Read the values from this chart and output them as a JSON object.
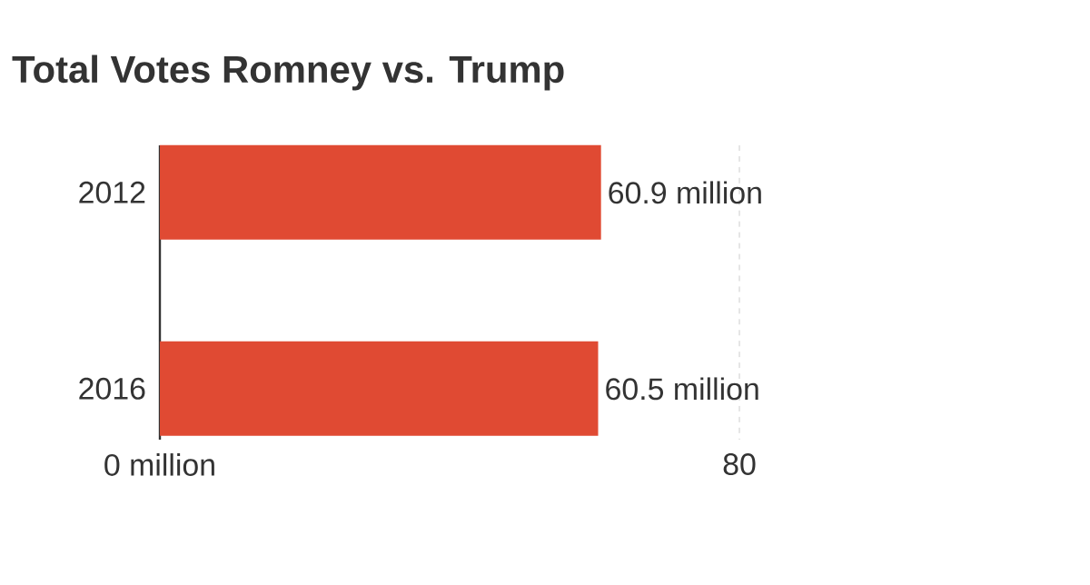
{
  "chart_data": {
    "type": "bar",
    "orientation": "horizontal",
    "title": "Total Votes Romney vs. Trump",
    "categories": [
      "2012",
      "2016"
    ],
    "values": [
      60.9,
      60.5
    ],
    "color": "#e04a33",
    "value_labels": [
      "60.9 million",
      "60.5 million"
    ],
    "xlim": [
      0,
      80
    ],
    "xticks": [
      {
        "value": 0,
        "label": "0 million"
      },
      80
    ],
    "grid": "x"
  }
}
